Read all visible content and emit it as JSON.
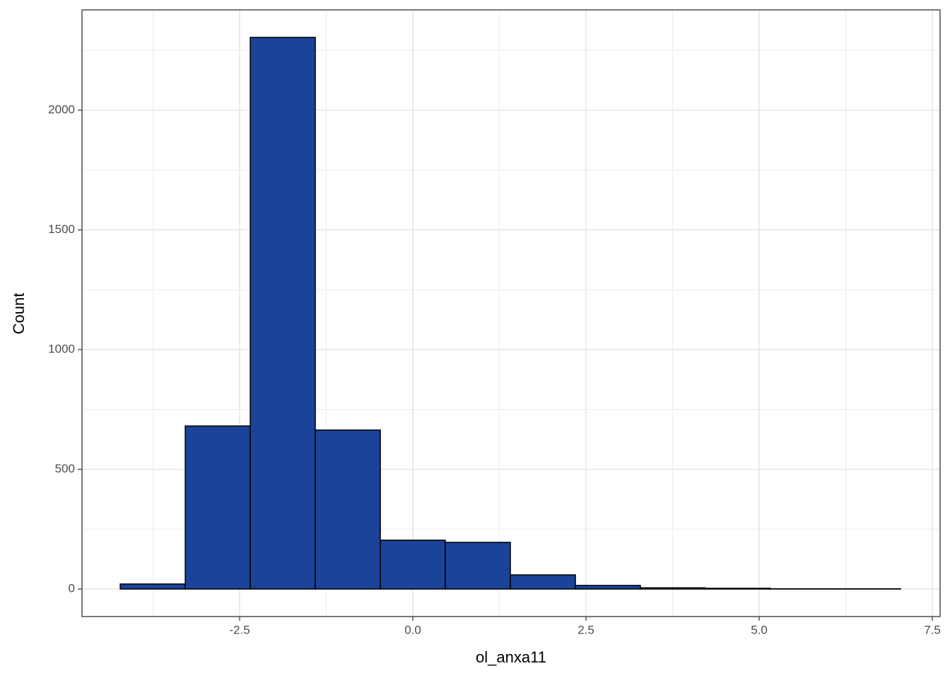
{
  "chart_data": {
    "type": "histogram",
    "x_label": "ol_anxa11",
    "y_label": "Count",
    "bins": [
      -4.224,
      -3.285,
      -2.347,
      -1.408,
      -0.469,
      0.469,
      1.408,
      2.347,
      3.285,
      4.224,
      5.163,
      6.102,
      7.041
    ],
    "values": [
      21,
      681,
      2304,
      664,
      204,
      195,
      59,
      15,
      5,
      3,
      1,
      1
    ],
    "color": "#1a4399",
    "xlim": [
      -4.776,
      7.612
    ],
    "ylim": [
      -115,
      2419
    ],
    "xticks": [
      -2.5,
      {
        "value": 0,
        "label": "0.0"
      },
      2.5,
      {
        "value": 5,
        "label": "5.0"
      },
      7.5
    ],
    "yticks": [
      0,
      500,
      1000,
      1500,
      2000
    ],
    "grid": true
  }
}
